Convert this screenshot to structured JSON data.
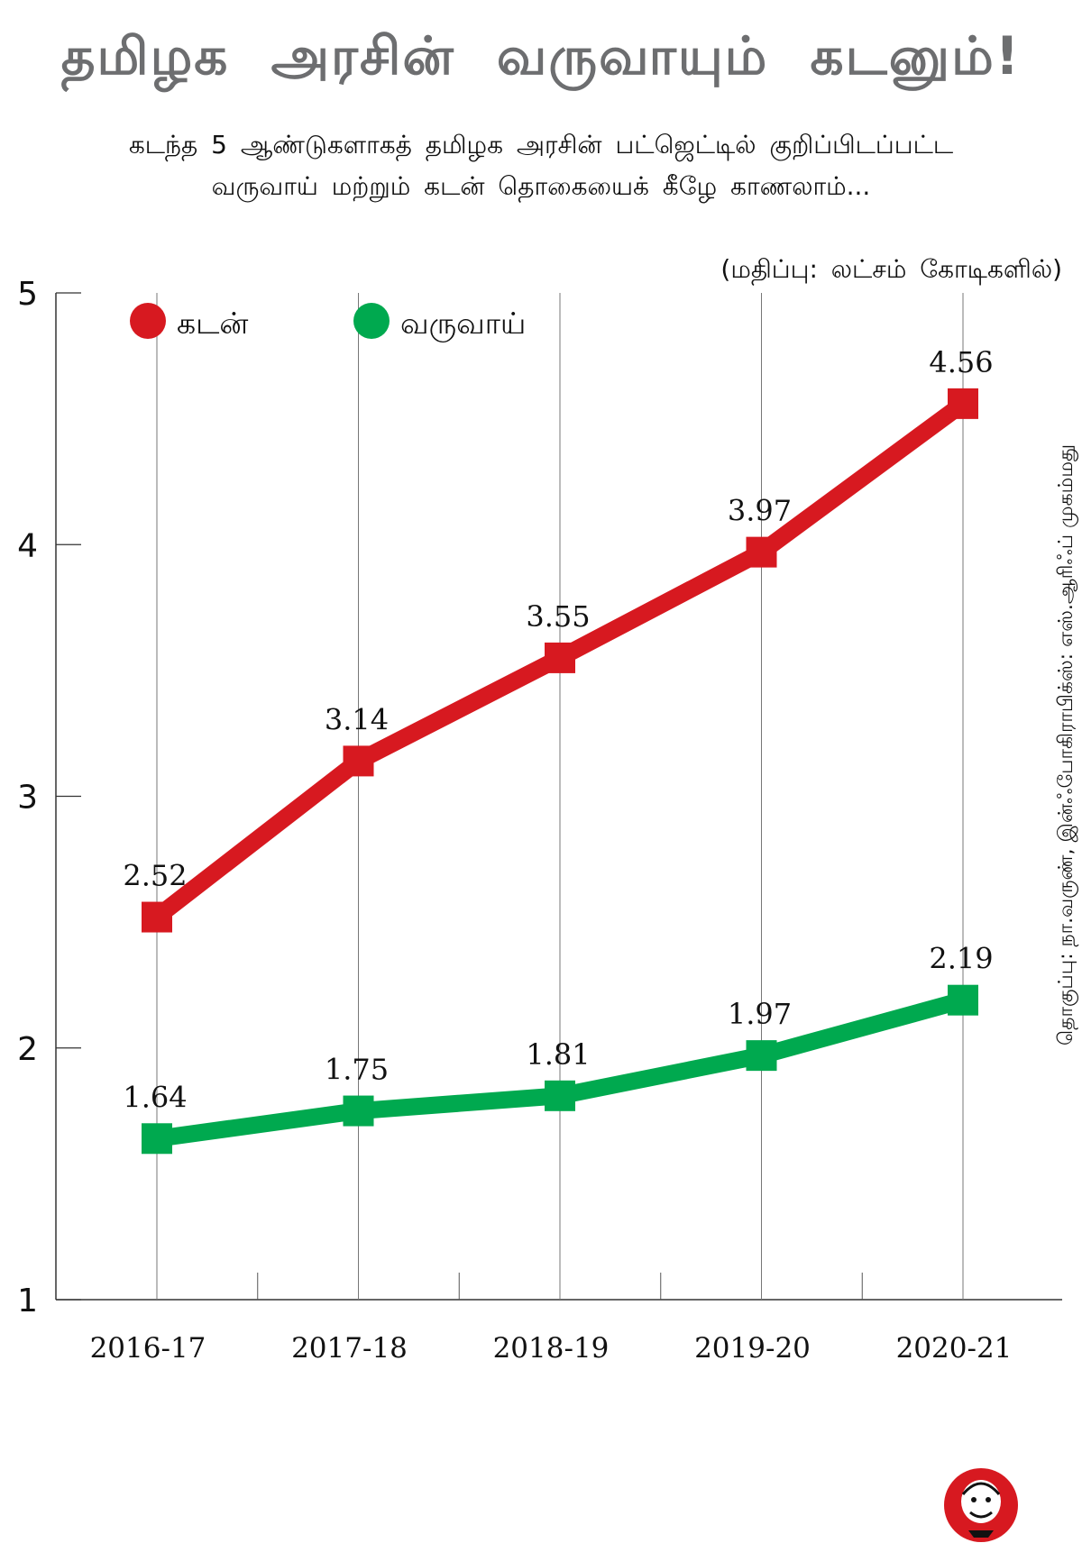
{
  "title": "தமிழக அரசின் வருவாயும் கடனும்!",
  "subtitle_lines": [
    "கடந்த 5 ஆண்டுகளாகத் தமிழக அரசின் பட்ஜெட்டில் குறிப்பிடப்பட்ட",
    "வருவாய் மற்றும் கடன் தொகையைக் கீழே காணலாம்..."
  ],
  "unit_note": "(மதிப்பு: லட்சம் கோடிகளில்)",
  "credit": "தொகுப்பு: நா.வருண், இன்ஃபோகிராபிக்ஸ்: எஸ்.ஆரிஃப் முகம்மது",
  "chart_data": {
    "type": "line",
    "categories": [
      "2016-17",
      "2017-18",
      "2018-19",
      "2019-20",
      "2020-21"
    ],
    "series": [
      {
        "name": "கடன்",
        "color": "#d71920",
        "values": [
          2.52,
          3.14,
          3.55,
          3.97,
          4.56
        ],
        "labels": [
          "2.52",
          "3.14",
          "3.55",
          "3.97",
          "4.56"
        ]
      },
      {
        "name": "வருவாய்",
        "color": "#00a94f",
        "values": [
          1.64,
          1.75,
          1.81,
          1.97,
          2.19
        ],
        "labels": [
          "1.64",
          "1.75",
          "1.81",
          "1.97",
          "2.19"
        ]
      }
    ],
    "ylim": [
      1,
      5
    ],
    "yticks": [
      "1",
      "2",
      "3",
      "4",
      "5"
    ],
    "xlabel": "",
    "ylabel": "",
    "grid": "vertical",
    "legend": "top-left"
  }
}
